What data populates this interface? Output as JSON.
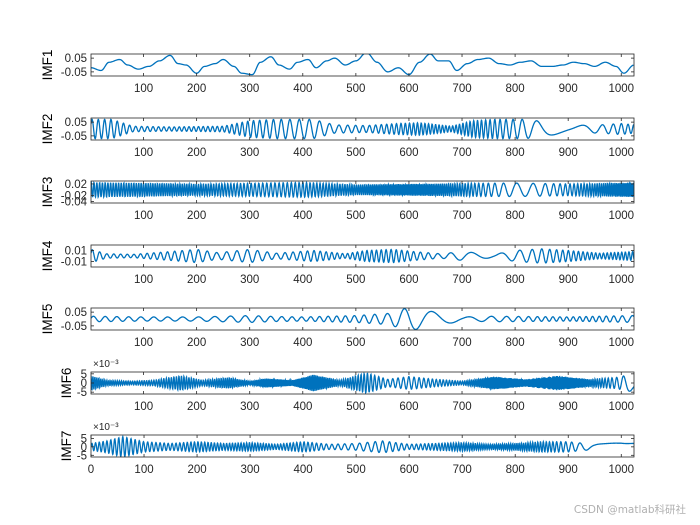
{
  "chart_data": [
    {
      "type": "line",
      "ylabel": "IMF1",
      "series_color": "#0072BD",
      "xlim": [
        1,
        1024
      ],
      "ylim": [
        -0.08,
        0.08
      ],
      "yticks": [
        -0.05,
        0.05
      ],
      "ytick_labels": [
        "-0.05",
        "0.05"
      ],
      "xticks": [
        100,
        200,
        300,
        400,
        500,
        600,
        700,
        800,
        900,
        1000
      ],
      "xtick_labels": [
        "100",
        "200",
        "300",
        "400",
        "500",
        "600",
        "700",
        "800",
        "900",
        "1000"
      ],
      "x": [
        1,
        20,
        35,
        55,
        70,
        90,
        110,
        130,
        150,
        165,
        180,
        200,
        215,
        235,
        250,
        270,
        285,
        305,
        320,
        340,
        355,
        375,
        390,
        410,
        425,
        445,
        460,
        480,
        500,
        520,
        540,
        560,
        580,
        600,
        620,
        640,
        655,
        675,
        690,
        710,
        730,
        750,
        770,
        790,
        810,
        830,
        850,
        870,
        890,
        910,
        930,
        950,
        970,
        990,
        1005,
        1024
      ],
      "y": [
        -0.02,
        -0.04,
        0.02,
        0.04,
        0.0,
        -0.03,
        -0.01,
        0.03,
        0.07,
        0.01,
        0.0,
        -0.06,
        -0.01,
        0.01,
        0.04,
        -0.01,
        -0.06,
        -0.07,
        0.02,
        0.06,
        0.0,
        -0.03,
        0.02,
        0.04,
        -0.02,
        0.03,
        0.05,
        0.0,
        0.03,
        0.09,
        0.02,
        -0.05,
        -0.02,
        -0.07,
        0.02,
        0.08,
        0.03,
        0.03,
        -0.04,
        0.01,
        0.04,
        0.05,
        0.01,
        0.0,
        0.02,
        0.03,
        -0.01,
        -0.01,
        0.0,
        0.02,
        0.01,
        -0.01,
        0.02,
        -0.01,
        -0.06,
        0.0
      ]
    },
    {
      "type": "line",
      "ylabel": "IMF2",
      "series_color": "#0072BD",
      "xlim": [
        1,
        1024
      ],
      "ylim": [
        -0.08,
        0.08
      ],
      "yticks": [
        -0.05,
        0.05
      ],
      "ytick_labels": [
        "-0.05",
        "0.05"
      ],
      "xticks": [
        100,
        200,
        300,
        400,
        500,
        600,
        700,
        800,
        900,
        1000
      ],
      "xtick_labels": [
        "100",
        "200",
        "300",
        "400",
        "500",
        "600",
        "700",
        "800",
        "900",
        "1000"
      ],
      "osc_period": 11,
      "envelope_x": [
        1,
        40,
        80,
        150,
        250,
        300,
        350,
        420,
        460,
        520,
        580,
        620,
        680,
        720,
        760,
        820,
        860,
        900,
        960,
        1000,
        1024
      ],
      "envelope_amp": [
        0.07,
        0.07,
        0.02,
        0.015,
        0.02,
        0.06,
        0.07,
        0.07,
        0.03,
        0.025,
        0.04,
        0.045,
        0.02,
        0.06,
        0.07,
        0.07,
        0.05,
        0.025,
        0.03,
        0.04,
        0.03
      ]
    },
    {
      "type": "line",
      "ylabel": "IMF3",
      "series_color": "#0072BD",
      "xlim": [
        1,
        1024
      ],
      "ylim": [
        -0.045,
        0.03
      ],
      "yticks": [
        -0.04,
        -0.02,
        0.02
      ],
      "ytick_labels": [
        "-0.04",
        "-0.02",
        "0.02"
      ],
      "xticks": [
        100,
        200,
        300,
        400,
        500,
        600,
        700,
        800,
        900,
        1000
      ],
      "xtick_labels": [
        "100",
        "200",
        "300",
        "400",
        "500",
        "600",
        "700",
        "800",
        "900",
        "1000"
      ],
      "osc_period": 5,
      "envelope_x": [
        1,
        100,
        200,
        300,
        400,
        500,
        600,
        700,
        800,
        900,
        1024
      ],
      "envelope_amp": [
        0.025,
        0.023,
        0.02,
        0.022,
        0.025,
        0.018,
        0.02,
        0.022,
        0.023,
        0.02,
        0.025
      ]
    },
    {
      "type": "line",
      "ylabel": "IMF4",
      "series_color": "#0072BD",
      "xlim": [
        1,
        1024
      ],
      "ylim": [
        -0.02,
        0.02
      ],
      "yticks": [
        -0.01,
        0.01
      ],
      "ytick_labels": [
        "-0.01",
        "0.01"
      ],
      "xticks": [
        100,
        200,
        300,
        400,
        500,
        600,
        700,
        800,
        900,
        1000
      ],
      "xtick_labels": [
        "100",
        "200",
        "300",
        "400",
        "500",
        "600",
        "700",
        "800",
        "900",
        "1000"
      ],
      "osc_period": 14,
      "envelope_x": [
        1,
        30,
        80,
        150,
        200,
        240,
        300,
        350,
        420,
        480,
        520,
        570,
        610,
        660,
        700,
        760,
        800,
        850,
        900,
        960,
        1024
      ],
      "envelope_amp": [
        0.012,
        0.004,
        0.003,
        0.008,
        0.012,
        0.006,
        0.012,
        0.005,
        0.01,
        0.004,
        0.01,
        0.012,
        0.008,
        0.004,
        0.008,
        0.003,
        0.01,
        0.013,
        0.01,
        0.005,
        0.008
      ]
    },
    {
      "type": "line",
      "ylabel": "IMF5",
      "series_color": "#0072BD",
      "xlim": [
        1,
        1024
      ],
      "ylim": [
        -0.08,
        0.08
      ],
      "yticks": [
        -0.05,
        0.05
      ],
      "ytick_labels": [
        "-0.05",
        "0.05"
      ],
      "xticks": [
        100,
        200,
        300,
        400,
        500,
        600,
        700,
        800,
        900,
        1000
      ],
      "xtick_labels": [
        "100",
        "200",
        "300",
        "400",
        "500",
        "600",
        "700",
        "800",
        "900",
        "1000"
      ],
      "osc_period": 24,
      "envelope_x": [
        1,
        100,
        200,
        250,
        300,
        350,
        400,
        450,
        500,
        560,
        600,
        650,
        700,
        760,
        820,
        900,
        960,
        1024
      ],
      "envelope_amp": [
        0.02,
        0.015,
        0.015,
        0.02,
        0.025,
        0.018,
        0.015,
        0.02,
        0.025,
        0.04,
        0.085,
        0.05,
        0.015,
        0.02,
        0.018,
        0.015,
        0.02,
        0.025
      ]
    },
    {
      "type": "line",
      "ylabel": "IMF6",
      "exponent_label": "×10⁻³",
      "series_color": "#0072BD",
      "xlim": [
        1,
        1024
      ],
      "ylim": [
        -6,
        6
      ],
      "yticks": [
        -5,
        0,
        5
      ],
      "ytick_labels": [
        "-5",
        "0",
        "5"
      ],
      "xticks": [
        100,
        200,
        300,
        400,
        500,
        600,
        700,
        800,
        900,
        1000
      ],
      "xtick_labels": [
        "100",
        "200",
        "300",
        "400",
        "500",
        "600",
        "700",
        "800",
        "900",
        "1000"
      ],
      "osc_period": 4,
      "envelope_x": [
        1,
        30,
        80,
        120,
        170,
        210,
        260,
        300,
        330,
        380,
        420,
        470,
        520,
        560,
        600,
        650,
        700,
        760,
        820,
        880,
        940,
        990,
        1024
      ],
      "envelope_amp": [
        4.0,
        1.5,
        1.0,
        1.5,
        4.0,
        1.5,
        3.0,
        1.0,
        2.5,
        1.5,
        4.5,
        1.5,
        5.5,
        2.0,
        3.5,
        2.0,
        1.0,
        3.5,
        2.0,
        4.0,
        2.0,
        3.0,
        5.0
      ]
    },
    {
      "type": "line",
      "ylabel": "IMF7",
      "exponent_label": "×10⁻³",
      "series_color": "#0072BD",
      "xlim": [
        0,
        1024
      ],
      "ylim": [
        -6,
        7
      ],
      "yticks": [
        -5,
        0,
        5
      ],
      "ytick_labels": [
        "-5",
        "0",
        "5"
      ],
      "xticks": [
        0,
        100,
        200,
        300,
        400,
        500,
        600,
        700,
        800,
        900,
        1000
      ],
      "xtick_labels": [
        "0",
        "100",
        "200",
        "300",
        "400",
        "500",
        "600",
        "700",
        "800",
        "900",
        "1000"
      ],
      "osc_period": 7,
      "envelope_x": [
        0,
        30,
        60,
        100,
        150,
        200,
        250,
        300,
        350,
        400,
        450,
        500,
        550,
        600,
        650,
        700,
        750,
        800,
        850,
        900,
        950,
        1000,
        1024
      ],
      "envelope_amp": [
        2.0,
        3.5,
        6.0,
        3.0,
        2.0,
        3.0,
        2.0,
        2.5,
        1.5,
        3.0,
        1.5,
        2.0,
        3.5,
        1.5,
        2.0,
        2.5,
        1.5,
        2.0,
        3.0,
        3.0,
        1.5,
        2.5,
        2.0
      ]
    }
  ],
  "watermark": "CSDN @matlab科研社"
}
